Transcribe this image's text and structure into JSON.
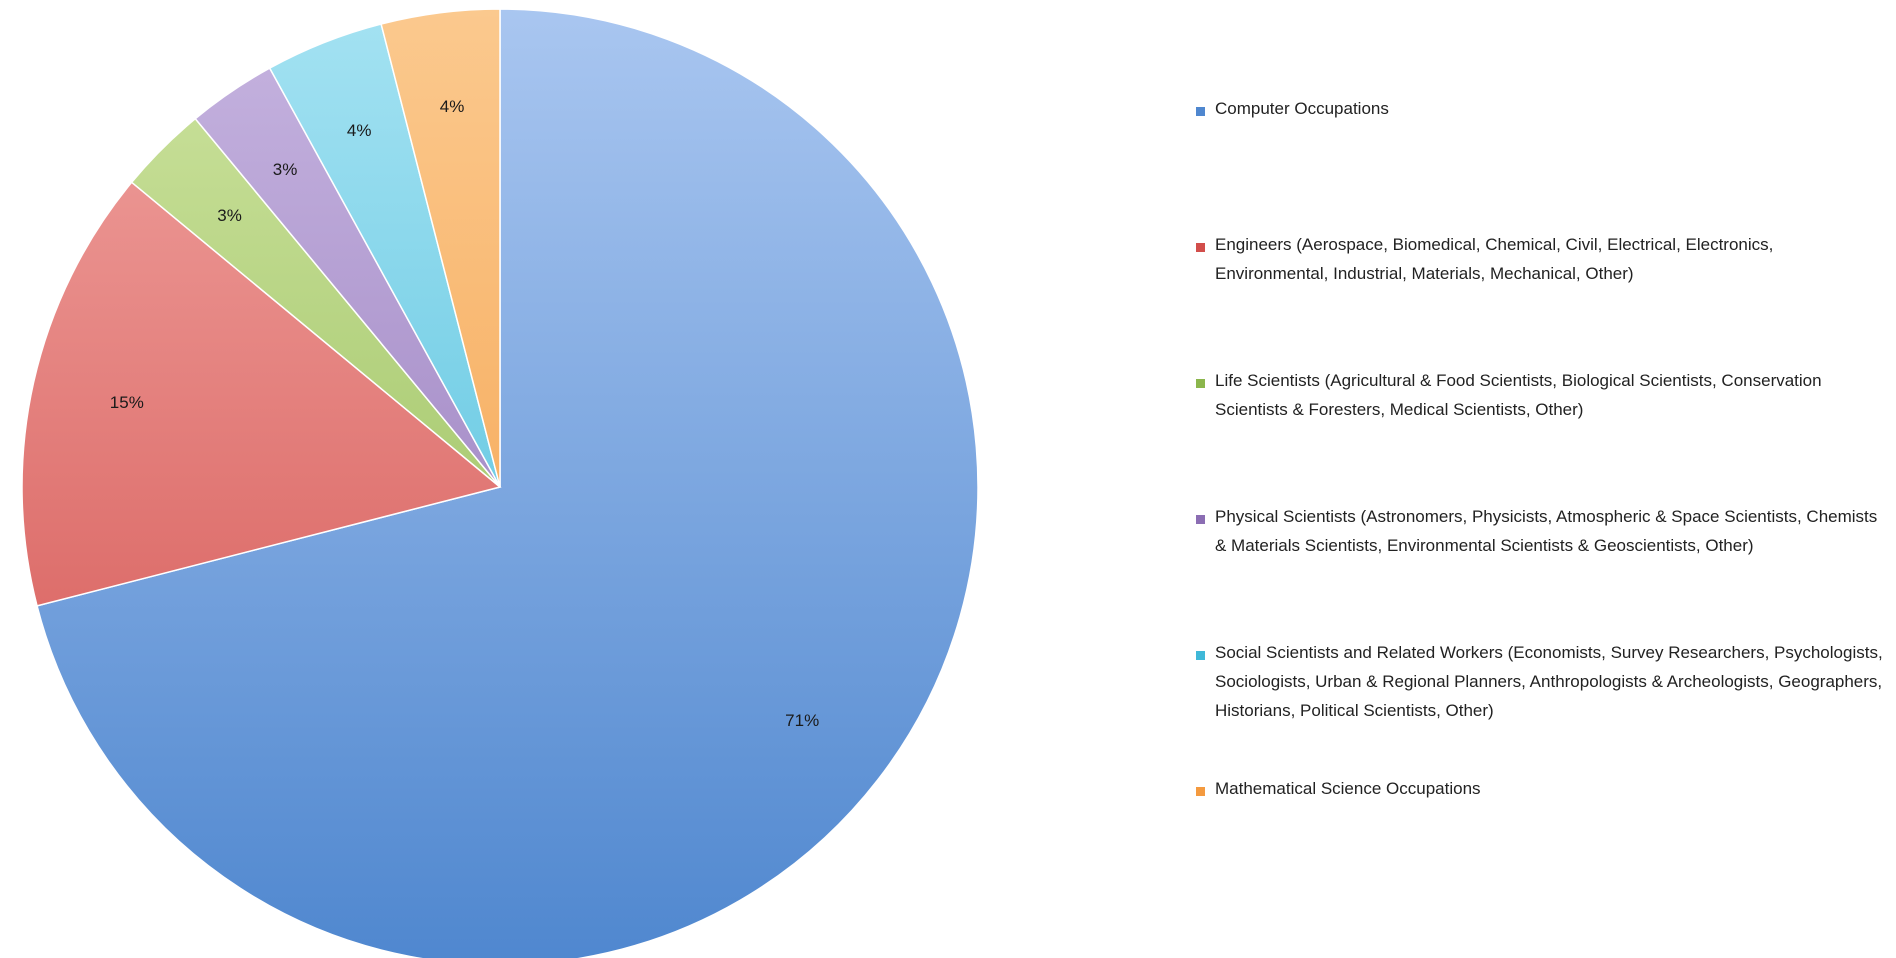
{
  "chart_data": {
    "type": "pie",
    "start_angle_deg": 0,
    "direction": "clockwise",
    "legend_position": "right",
    "slices": [
      {
        "label": "Computer Occupations",
        "value": 71,
        "data_label": "71%",
        "color": "#4f87cf",
        "color_light": "#a9c6f0"
      },
      {
        "label": "Engineers (Aerospace, Biomedical, Chemical, Civil, Electrical, Electronics, Environmental, Industrial, Materials, Mechanical, Other)",
        "value": 15,
        "data_label": "15%",
        "color": "#d24e4b",
        "color_light": "#f0a3a0"
      },
      {
        "label": "Life Scientists (Agricultural & Food Scientists, Biological Scientists, Conservation Scientists & Foresters, Medical Scientists, Other)",
        "value": 3,
        "data_label": "3%",
        "color": "#8bb64c",
        "color_light": "#cde39f"
      },
      {
        "label": "Physical Scientists (Astronomers, Physicists, Atmospheric & Space Scientists, Chemists & Materials Scientists, Environmental Scientists & Geoscientists, Other)",
        "value": 3,
        "data_label": "3%",
        "color": "#8b6db3",
        "color_light": "#c6b4e0"
      },
      {
        "label": "Social Scientists and Related Workers (Economists, Survey Researchers, Psychologists, Sociologists, Urban & Regional Planners, Anthropologists & Archeologists, Geographers, Historians, Political Scientists, Other)",
        "value": 4,
        "data_label": "4%",
        "color": "#3fb8d8",
        "color_light": "#a4e2f2"
      },
      {
        "label": "Mathematical Science Occupations",
        "value": 4,
        "data_label": "4%",
        "color": "#f49a3f",
        "color_light": "#fbc98e"
      }
    ]
  }
}
